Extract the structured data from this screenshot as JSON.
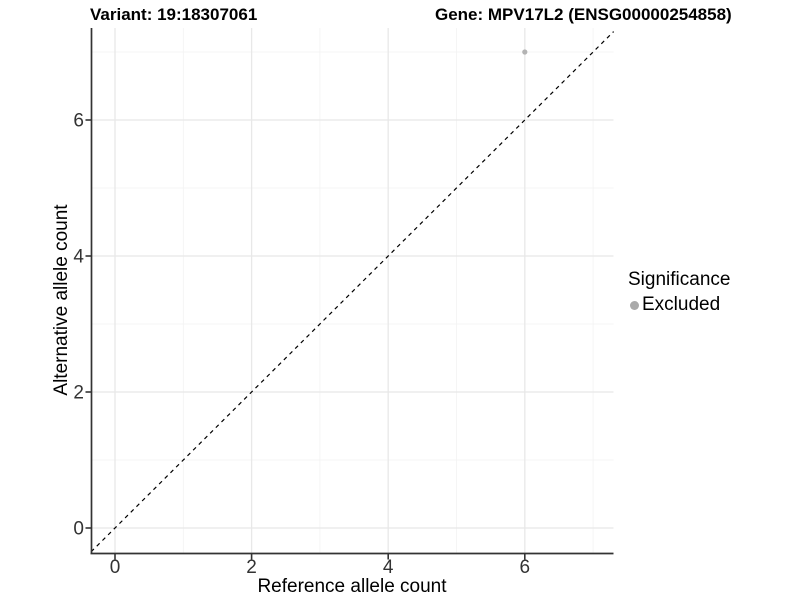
{
  "header": {
    "variant_title": "Variant: 19:18307061",
    "gene_title": "Gene: MPV17L2 (ENSG00000254858)"
  },
  "legend": {
    "title": "Significance",
    "items": [
      {
        "label": "Excluded",
        "color": "#aaaaaa"
      }
    ]
  },
  "colors": {
    "grid_major": "#e8e8e8",
    "grid_minor": "#f4f4f4",
    "axis_line": "#333333",
    "tick_label": "#333333",
    "point": "#b3b3b3",
    "reference_line": "#000000",
    "background": "#ffffff"
  },
  "chart_data": {
    "type": "scatter",
    "title": "Variant: 19:18307061    Gene: MPV17L2 (ENSG00000254858)",
    "xlabel": "Reference allele count",
    "ylabel": "Alternative allele count",
    "xlim": [
      -0.35,
      7.35
    ],
    "ylim": [
      -0.35,
      7.35
    ],
    "x_major_ticks": [
      0,
      2,
      4,
      6
    ],
    "y_major_ticks": [
      0,
      2,
      4,
      6
    ],
    "x_minor_gridlines": [
      1,
      3,
      5,
      7
    ],
    "y_minor_gridlines": [
      1,
      3,
      5,
      7
    ],
    "grid": true,
    "legend_position": "right",
    "series": [
      {
        "name": "Excluded",
        "color": "#b3b3b3",
        "points": [
          {
            "x": 6,
            "y": 7
          }
        ]
      }
    ],
    "reference_line": {
      "type": "identity",
      "slope": 1,
      "intercept": 0,
      "style": "dashed",
      "color": "#000000"
    }
  }
}
